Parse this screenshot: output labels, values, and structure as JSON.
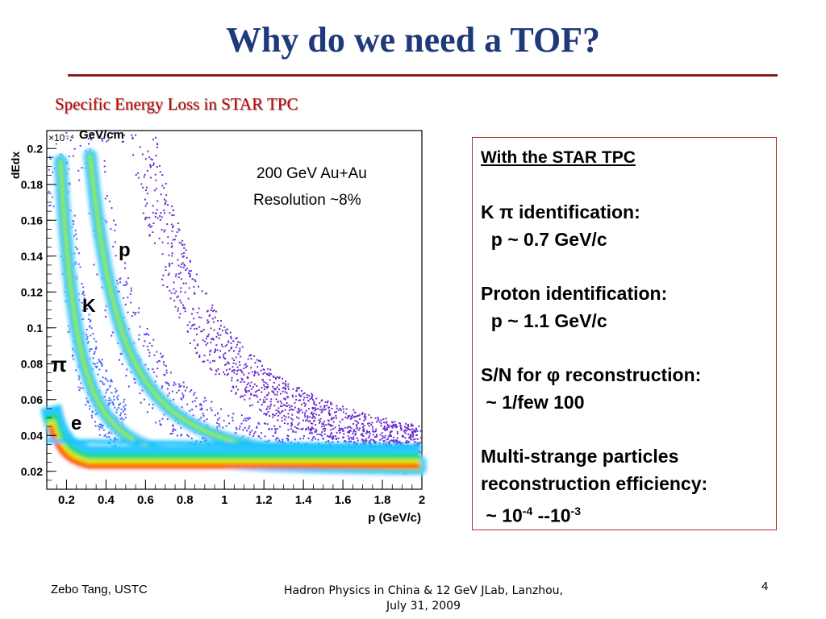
{
  "slide": {
    "title": "Why do we need a TOF?",
    "subtitle": "Specific Energy Loss in STAR TPC",
    "page_number": "4"
  },
  "plot": {
    "y_label": "dEdx",
    "y_multiplier": "×10⁻⁴",
    "y_unit": "GeV/cm",
    "x_label": "p (GeV/c)",
    "x_ticks": [
      "0.2",
      "0.4",
      "0.6",
      "0.8",
      "1",
      "1.2",
      "1.4",
      "1.6",
      "1.8",
      "2"
    ],
    "y_ticks": [
      "0.02",
      "0.04",
      "0.06",
      "0.08",
      "0.1",
      "0.12",
      "0.14",
      "0.16",
      "0.18",
      "0.2"
    ],
    "annotation_line1": "200 GeV Au+Au",
    "annotation_line2": "Resolution ~8%",
    "particle_labels": {
      "p": "p",
      "K": "K",
      "pi": "π",
      "e": "e"
    },
    "xlim": [
      0.1,
      2.0
    ],
    "ylim": [
      0.01,
      0.21
    ]
  },
  "info_box": {
    "heading": "With the STAR TPC",
    "k_pi_line": "K π identification:",
    "k_pi_value": "  p ~ 0.7 GeV/c",
    "proton_line": "Proton identification:",
    "proton_value": "  p ~ 1.1 GeV/c",
    "sn_line": "S/N for φ reconstruction:",
    "sn_value": " ~ 1/few 100",
    "multi_line1": "Multi-strange particles",
    "multi_line2": "reconstruction efficiency:",
    "multi_prefix": " ~ 10",
    "multi_exp1": "-4",
    "multi_mid": " --10",
    "multi_exp2": "-3"
  },
  "footer": {
    "author": "Zebo Tang, USTC",
    "event_line1": "Hadron Physics in China & 12 GeV JLab, Lanzhou,",
    "event_line2": "July 31, 2009"
  },
  "colors": {
    "title": "#1f3a7a",
    "rule": "#8b1a1a",
    "subtitle": "#c00000",
    "box_border": "#b03030"
  }
}
